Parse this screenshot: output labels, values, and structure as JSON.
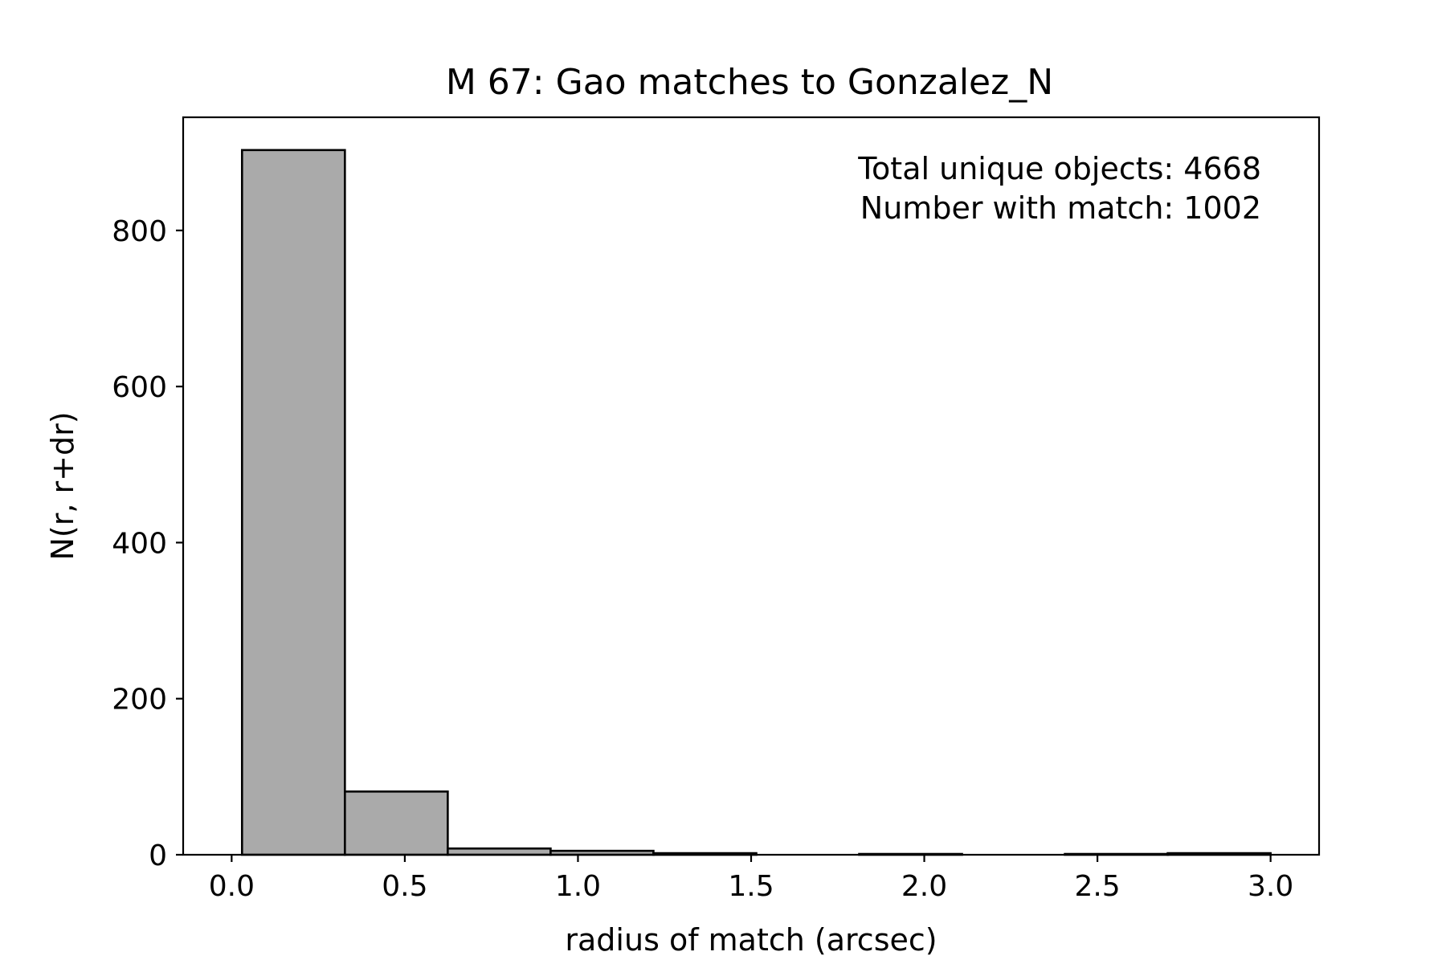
{
  "chart_data": {
    "type": "bar",
    "title": "M 67: Gao matches to Gonzalez_N",
    "xlabel": "radius of match (arcsec)",
    "ylabel": "N(r, r+dr)",
    "xlim": [
      -0.14,
      3.14
    ],
    "ylim": [
      0,
      945
    ],
    "xticks": [
      "0.0",
      "0.5",
      "1.0",
      "1.5",
      "2.0",
      "2.5",
      "3.0"
    ],
    "yticks": [
      "0",
      "200",
      "400",
      "600",
      "800"
    ],
    "bin_edges": [
      0.03,
      0.327,
      0.624,
      0.921,
      1.218,
      1.515,
      1.812,
      2.109,
      2.406,
      2.703,
      3.0
    ],
    "values": [
      903,
      81,
      8,
      5,
      2,
      0,
      1,
      0,
      1,
      2
    ],
    "annotations": [
      "Total unique objects: 4668",
      "Number with match: 1002"
    ],
    "grid": false,
    "colors": {
      "bar_fill": "#aaaaaa",
      "bar_edge": "#000000"
    }
  }
}
